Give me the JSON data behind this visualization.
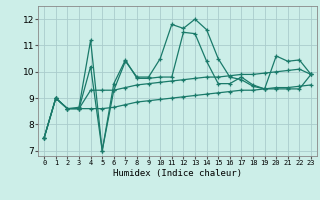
{
  "bg_color": "#cceee8",
  "grid_color": "#aacccc",
  "line_color": "#1a7a6a",
  "xlabel": "Humidex (Indice chaleur)",
  "ylim": [
    6.8,
    12.5
  ],
  "xlim": [
    -0.5,
    23.5
  ],
  "yticks": [
    7,
    8,
    9,
    10,
    11,
    12
  ],
  "xticks": [
    0,
    1,
    2,
    3,
    4,
    5,
    6,
    7,
    8,
    9,
    10,
    11,
    12,
    13,
    14,
    15,
    16,
    17,
    18,
    19,
    20,
    21,
    22,
    23
  ],
  "series": [
    [
      7.5,
      9.0,
      8.6,
      8.6,
      10.2,
      7.0,
      9.3,
      10.4,
      9.8,
      9.8,
      10.5,
      11.8,
      11.65,
      12.0,
      11.6,
      10.5,
      9.8,
      9.7,
      9.45,
      9.35,
      10.6,
      10.4,
      10.45,
      9.9
    ],
    [
      7.5,
      9.0,
      8.6,
      8.65,
      11.2,
      7.0,
      9.55,
      10.45,
      9.75,
      9.75,
      9.8,
      9.8,
      11.5,
      11.45,
      10.4,
      9.55,
      9.55,
      9.8,
      9.5,
      9.35,
      9.35,
      9.35,
      9.35,
      9.9
    ],
    [
      7.5,
      9.0,
      8.6,
      8.6,
      9.3,
      9.3,
      9.3,
      9.4,
      9.5,
      9.55,
      9.6,
      9.65,
      9.7,
      9.75,
      9.8,
      9.8,
      9.85,
      9.9,
      9.9,
      9.95,
      10.0,
      10.05,
      10.1,
      9.9
    ],
    [
      7.5,
      9.0,
      8.6,
      8.6,
      8.6,
      8.6,
      8.65,
      8.75,
      8.85,
      8.9,
      8.95,
      9.0,
      9.05,
      9.1,
      9.15,
      9.2,
      9.25,
      9.3,
      9.3,
      9.35,
      9.4,
      9.4,
      9.45,
      9.5
    ]
  ]
}
